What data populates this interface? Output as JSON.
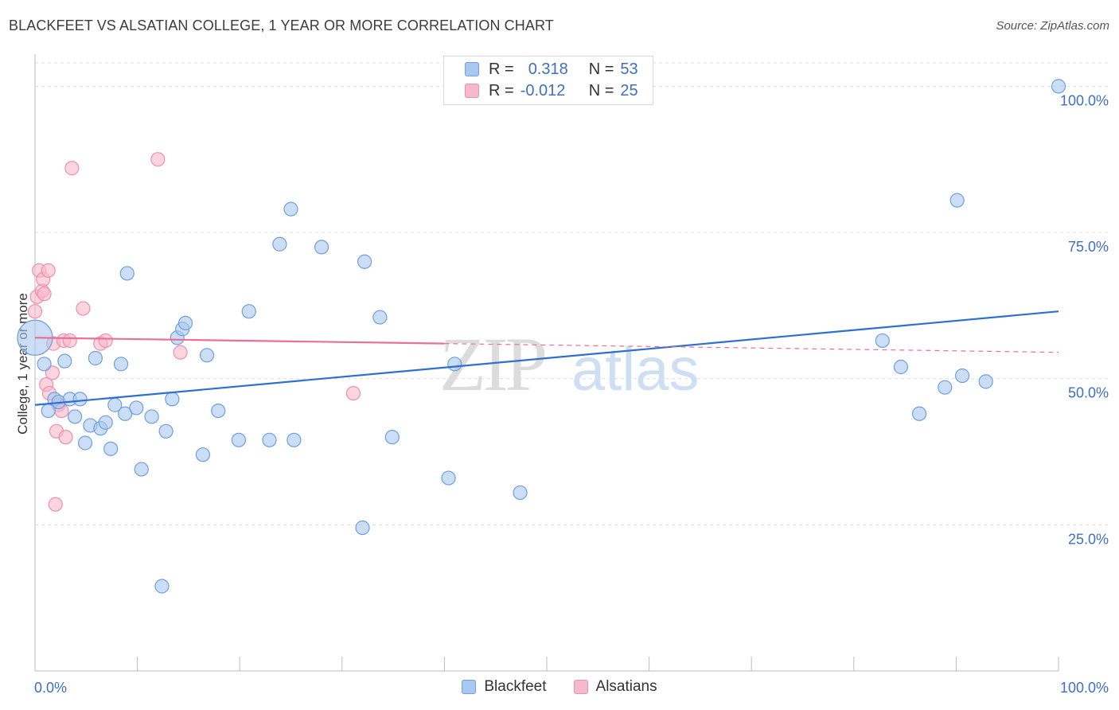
{
  "header": {
    "title": "BLACKFEET VS ALSATIAN COLLEGE, 1 YEAR OR MORE CORRELATION CHART",
    "source": "Source: ZipAtlas.com"
  },
  "legend": {
    "rows": [
      {
        "r_label": "R =",
        "r_value": "0.318",
        "n_label": "N =",
        "n_value": "53"
      },
      {
        "r_label": "R =",
        "r_value": "-0.012",
        "n_label": "N =",
        "n_value": "25"
      }
    ]
  },
  "bottom_legend": [
    "Blackfeet",
    "Alsatians"
  ],
  "watermark": {
    "zip": "ZIP",
    "atlas": "atlas"
  },
  "colors": {
    "blue_fill": "#a9c8f0",
    "blue_stroke": "#6f9fdc",
    "blue_line": "#2f6fd0",
    "pink_fill": "#f6b9cb",
    "pink_stroke": "#ec8fab",
    "pink_line": "#e8709a",
    "tick_label": "#3d6fc4",
    "grid": "#dddddd"
  },
  "chart_data": {
    "type": "scatter",
    "title": "BLACKFEET VS ALSATIAN COLLEGE, 1 YEAR OR MORE CORRELATION CHART",
    "xlabel": "",
    "ylabel": "College, 1 year or more",
    "xlim": [
      0,
      100
    ],
    "ylim": [
      0,
      104
    ],
    "x_tick_labels": [
      "0.0%",
      "100.0%"
    ],
    "y_ticks": [
      25,
      50,
      75,
      100
    ],
    "y_tick_labels": [
      "25.0%",
      "50.0%",
      "75.0%",
      "100.0%"
    ],
    "grid": true,
    "legend_position": "top-center",
    "series": [
      {
        "name": "Blackfeet",
        "r": 0.318,
        "n": 53,
        "trend": {
          "x": [
            0,
            100
          ],
          "y": [
            45.5,
            61.5
          ],
          "style": "solid"
        },
        "points": [
          {
            "x": 0,
            "y": 57,
            "big": true
          },
          {
            "x": 0.9,
            "y": 52.5
          },
          {
            "x": 1.3,
            "y": 44.5
          },
          {
            "x": 1.9,
            "y": 46.5
          },
          {
            "x": 2.3,
            "y": 46
          },
          {
            "x": 2.9,
            "y": 53
          },
          {
            "x": 3.4,
            "y": 46.5
          },
          {
            "x": 3.9,
            "y": 43.5
          },
          {
            "x": 4.4,
            "y": 46.5
          },
          {
            "x": 4.9,
            "y": 39
          },
          {
            "x": 5.4,
            "y": 42
          },
          {
            "x": 5.9,
            "y": 53.5
          },
          {
            "x": 6.4,
            "y": 41.5
          },
          {
            "x": 6.9,
            "y": 42.5
          },
          {
            "x": 7.4,
            "y": 38
          },
          {
            "x": 7.8,
            "y": 45.5
          },
          {
            "x": 8.4,
            "y": 52.5
          },
          {
            "x": 8.8,
            "y": 44
          },
          {
            "x": 9.0,
            "y": 68
          },
          {
            "x": 9.9,
            "y": 45
          },
          {
            "x": 10.4,
            "y": 34.5
          },
          {
            "x": 11.4,
            "y": 43.5
          },
          {
            "x": 12.4,
            "y": 14.5
          },
          {
            "x": 12.8,
            "y": 41
          },
          {
            "x": 13.4,
            "y": 46.5
          },
          {
            "x": 13.9,
            "y": 57
          },
          {
            "x": 14.4,
            "y": 58.5
          },
          {
            "x": 14.7,
            "y": 59.5
          },
          {
            "x": 16.4,
            "y": 37
          },
          {
            "x": 16.8,
            "y": 54
          },
          {
            "x": 17.9,
            "y": 44.5
          },
          {
            "x": 19.9,
            "y": 39.5
          },
          {
            "x": 20.9,
            "y": 61.5
          },
          {
            "x": 22.9,
            "y": 39.5
          },
          {
            "x": 23.9,
            "y": 73
          },
          {
            "x": 25.0,
            "y": 79
          },
          {
            "x": 25.3,
            "y": 39.5
          },
          {
            "x": 28.0,
            "y": 72.5
          },
          {
            "x": 32.0,
            "y": 24.5
          },
          {
            "x": 32.2,
            "y": 70
          },
          {
            "x": 33.7,
            "y": 60.5
          },
          {
            "x": 34.9,
            "y": 40
          },
          {
            "x": 40.4,
            "y": 33
          },
          {
            "x": 41.0,
            "y": 52.5
          },
          {
            "x": 47.4,
            "y": 30.5
          },
          {
            "x": 82.8,
            "y": 56.5
          },
          {
            "x": 84.6,
            "y": 52
          },
          {
            "x": 86.4,
            "y": 44
          },
          {
            "x": 88.9,
            "y": 48.5
          },
          {
            "x": 90.1,
            "y": 80.5
          },
          {
            "x": 90.6,
            "y": 50.5
          },
          {
            "x": 92.9,
            "y": 49.5
          },
          {
            "x": 100,
            "y": 100
          }
        ]
      },
      {
        "name": "Alsatians",
        "r": -0.012,
        "n": 25,
        "trend": {
          "x": [
            0,
            40
          ],
          "y": [
            57,
            56
          ],
          "dashed_to": {
            "x": 100,
            "y": 54.5
          }
        },
        "points": [
          {
            "x": 0,
            "y": 61.5
          },
          {
            "x": 0.2,
            "y": 64
          },
          {
            "x": 0.4,
            "y": 68.5
          },
          {
            "x": 0.7,
            "y": 65
          },
          {
            "x": 0.8,
            "y": 67
          },
          {
            "x": 0.9,
            "y": 64.5
          },
          {
            "x": 1.1,
            "y": 49
          },
          {
            "x": 1.3,
            "y": 68.5
          },
          {
            "x": 1.4,
            "y": 47.5
          },
          {
            "x": 1.7,
            "y": 51
          },
          {
            "x": 1.8,
            "y": 56
          },
          {
            "x": 2.0,
            "y": 28.5
          },
          {
            "x": 2.1,
            "y": 41
          },
          {
            "x": 2.3,
            "y": 45.5
          },
          {
            "x": 2.6,
            "y": 44.5
          },
          {
            "x": 2.8,
            "y": 56.5
          },
          {
            "x": 3.0,
            "y": 40
          },
          {
            "x": 3.4,
            "y": 56.5
          },
          {
            "x": 3.6,
            "y": 86
          },
          {
            "x": 4.7,
            "y": 62
          },
          {
            "x": 6.4,
            "y": 56
          },
          {
            "x": 6.9,
            "y": 56.5
          },
          {
            "x": 12.0,
            "y": 87.5
          },
          {
            "x": 14.2,
            "y": 54.5
          },
          {
            "x": 31.1,
            "y": 47.5
          }
        ]
      }
    ]
  }
}
